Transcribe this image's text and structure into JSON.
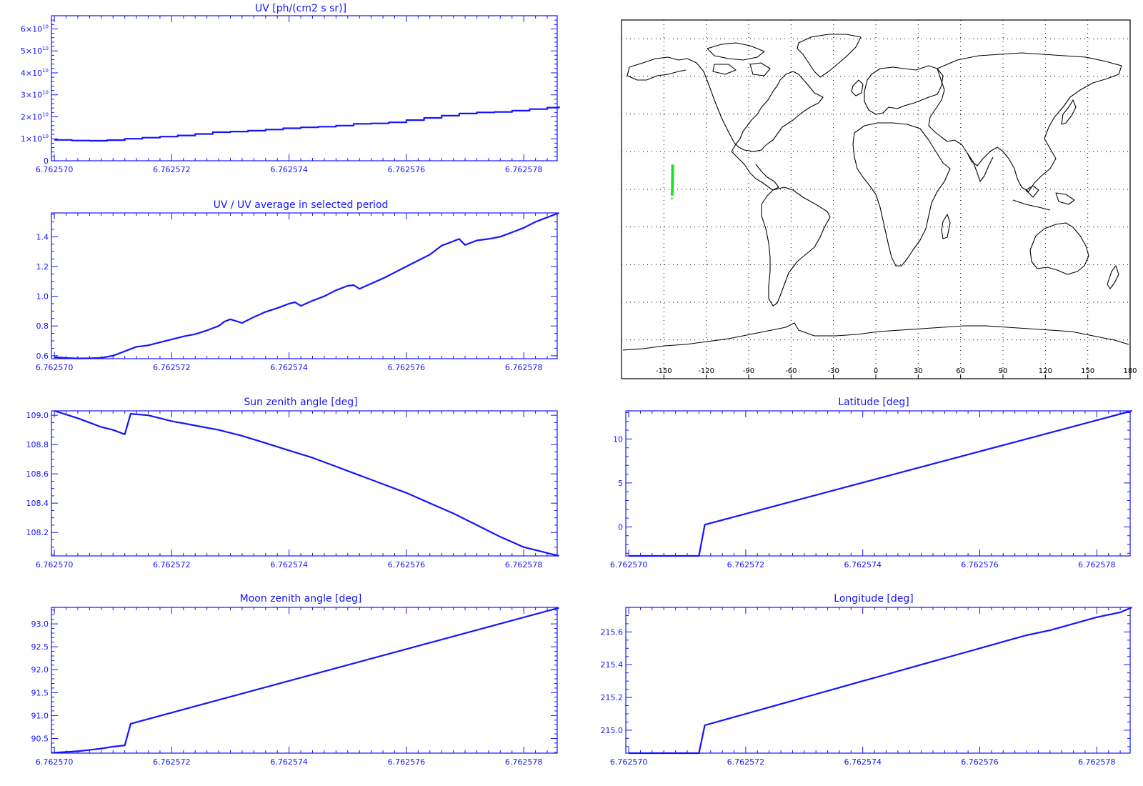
{
  "colors": {
    "axis": "#1414ff",
    "series": "#1414ff",
    "map_lines": "#000000",
    "track": "#22e022"
  },
  "chart_data": [
    {
      "id": "uv",
      "type": "line",
      "title": "UV [ph/(cm2 s sr)]",
      "xlim": [
        6.76256995,
        6.76257857
      ],
      "ylim": [
        0,
        66000000000.0
      ],
      "x_ticks": [
        6.76257,
        6.762572,
        6.762574,
        6.762576,
        6.762578
      ],
      "x_tick_labels": [
        "6.762570",
        "6.762572",
        "6.762574",
        "6.762576",
        "6.762578"
      ],
      "y_ticks": [
        0,
        10000000000.0,
        20000000000.0,
        30000000000.0,
        40000000000.0,
        50000000000.0,
        60000000000.0
      ],
      "y_tick_labels": [
        {
          "base": "0",
          "exp": ""
        },
        {
          "base": "1×10",
          "exp": "10"
        },
        {
          "base": "2×10",
          "exp": "10"
        },
        {
          "base": "3×10",
          "exp": "10"
        },
        {
          "base": "4×10",
          "exp": "10"
        },
        {
          "base": "5×10",
          "exp": "10"
        },
        {
          "base": "6×10",
          "exp": "10"
        }
      ],
      "y_minor": 5,
      "series": [
        {
          "step": true,
          "x": [
            6.76257,
            6.7625703,
            6.7625706,
            6.7625709,
            6.7625712,
            6.7625715,
            6.7625718,
            6.7625721,
            6.7625724,
            6.7625727,
            6.762573,
            6.7625733,
            6.7625736,
            6.7625739,
            6.7625742,
            6.7625745,
            6.7625748,
            6.7625751,
            6.7625754,
            6.7625757,
            6.762576,
            6.7625763,
            6.7625766,
            6.7625769,
            6.7625772,
            6.7625775,
            6.7625778,
            6.7625781,
            6.7625784,
            6.7625786
          ],
          "y": [
            9500000000.0,
            9200000000.0,
            9100000000.0,
            9400000000.0,
            10000000000.0,
            10500000000.0,
            11000000000.0,
            11500000000.0,
            12200000000.0,
            13000000000.0,
            13300000000.0,
            13700000000.0,
            14200000000.0,
            14800000000.0,
            15200000000.0,
            15500000000.0,
            16000000000.0,
            16800000000.0,
            17000000000.0,
            17500000000.0,
            18500000000.0,
            19500000000.0,
            20500000000.0,
            21500000000.0,
            22000000000.0,
            22200000000.0,
            22800000000.0,
            23500000000.0,
            24200000000.0,
            24800000000.0
          ]
        }
      ]
    },
    {
      "id": "uv_ratio",
      "type": "line",
      "title": "UV / UV average in selected period",
      "xlim": [
        6.76256995,
        6.76257857
      ],
      "ylim": [
        0.58,
        1.56
      ],
      "x_ticks": [
        6.76257,
        6.762572,
        6.762574,
        6.762576,
        6.762578
      ],
      "x_tick_labels": [
        "6.762570",
        "6.762572",
        "6.762574",
        "6.762576",
        "6.762578"
      ],
      "y_ticks": [
        0.6,
        0.8,
        1.0,
        1.2,
        1.4
      ],
      "y_tick_labels": [
        "0.6",
        "0.8",
        "1.0",
        "1.2",
        "1.4"
      ],
      "y_minor": 4,
      "series": [
        {
          "x": [
            6.76257,
            6.7625702,
            6.7625704,
            6.7625706,
            6.7625708,
            6.762571,
            6.7625712,
            6.7625714,
            6.7625716,
            6.7625718,
            6.762572,
            6.7625722,
            6.7625724,
            6.7625726,
            6.7625728,
            6.7625729,
            6.762573,
            6.7625732,
            6.7625734,
            6.7625736,
            6.7625738,
            6.762574,
            6.7625741,
            6.7625742,
            6.7625744,
            6.7625746,
            6.7625748,
            6.762575,
            6.7625751,
            6.7625752,
            6.7625754,
            6.7625756,
            6.7625758,
            6.762576,
            6.7625762,
            6.7625764,
            6.7625766,
            6.7625768,
            6.7625769,
            6.762577,
            6.7625772,
            6.7625774,
            6.7625776,
            6.7625778,
            6.762578,
            6.7625782,
            6.7625784,
            6.7625786
          ],
          "y": [
            0.59,
            0.585,
            0.582,
            0.583,
            0.586,
            0.6,
            0.63,
            0.66,
            0.67,
            0.69,
            0.71,
            0.73,
            0.745,
            0.77,
            0.8,
            0.83,
            0.845,
            0.82,
            0.86,
            0.895,
            0.92,
            0.95,
            0.96,
            0.935,
            0.97,
            1.0,
            1.04,
            1.07,
            1.075,
            1.05,
            1.085,
            1.12,
            1.16,
            1.2,
            1.24,
            1.28,
            1.34,
            1.37,
            1.385,
            1.345,
            1.375,
            1.385,
            1.4,
            1.43,
            1.46,
            1.5,
            1.53,
            1.56
          ]
        }
      ]
    },
    {
      "id": "sun_zenith",
      "type": "line",
      "title": "Sun zenith angle [deg]",
      "xlim": [
        6.76256995,
        6.76257857
      ],
      "ylim": [
        108.04,
        109.03
      ],
      "x_ticks": [
        6.76257,
        6.762572,
        6.762574,
        6.762576,
        6.762578
      ],
      "x_tick_labels": [
        "6.762570",
        "6.762572",
        "6.762574",
        "6.762576",
        "6.762578"
      ],
      "y_ticks": [
        108.2,
        108.4,
        108.6,
        108.8,
        109.0
      ],
      "y_tick_labels": [
        "108.2",
        "108.4",
        "108.6",
        "108.8",
        "109.0"
      ],
      "y_minor": 4,
      "series": [
        {
          "x": [
            6.76257,
            6.7625704,
            6.7625708,
            6.762571,
            6.7625712,
            6.7625713,
            6.7625716,
            6.762572,
            6.7625724,
            6.7625728,
            6.7625732,
            6.7625736,
            6.762574,
            6.7625744,
            6.7625748,
            6.7625752,
            6.7625756,
            6.762576,
            6.7625764,
            6.7625768,
            6.7625772,
            6.7625776,
            6.762578,
            6.7625784,
            6.7625786
          ],
          "y": [
            109.03,
            108.98,
            108.92,
            108.9,
            108.87,
            109.01,
            109.0,
            108.96,
            108.93,
            108.9,
            108.86,
            108.81,
            108.76,
            108.71,
            108.65,
            108.59,
            108.53,
            108.47,
            108.4,
            108.33,
            108.25,
            108.17,
            108.1,
            108.06,
            108.04
          ]
        }
      ]
    },
    {
      "id": "latitude",
      "type": "line",
      "title": "Latitude [deg]",
      "xlim": [
        6.76256995,
        6.76257857
      ],
      "ylim": [
        -3.3,
        13.2
      ],
      "x_ticks": [
        6.76257,
        6.762572,
        6.762574,
        6.762576,
        6.762578
      ],
      "x_tick_labels": [
        "6.762570",
        "6.762572",
        "6.762574",
        "6.762576",
        "6.762578"
      ],
      "y_ticks": [
        0,
        5,
        10
      ],
      "y_tick_labels": [
        "0",
        "5",
        "10"
      ],
      "y_minor": 5,
      "series": [
        {
          "x": [
            6.76257,
            6.762571,
            6.7625712,
            6.7625713,
            6.7625786
          ],
          "y": [
            -3.3,
            -3.3,
            -3.3,
            0.25,
            13.2
          ]
        }
      ]
    },
    {
      "id": "moon_zenith",
      "type": "line",
      "title": "Moon zenith angle [deg]",
      "xlim": [
        6.76256995,
        6.76257857
      ],
      "ylim": [
        90.18,
        93.36
      ],
      "x_ticks": [
        6.76257,
        6.762572,
        6.762574,
        6.762576,
        6.762578
      ],
      "x_tick_labels": [
        "6.762570",
        "6.762572",
        "6.762574",
        "6.762576",
        "6.762578"
      ],
      "y_ticks": [
        90.5,
        91.0,
        91.5,
        92.0,
        92.5,
        93.0
      ],
      "y_tick_labels": [
        "90.5",
        "91.0",
        "91.5",
        "92.0",
        "92.5",
        "93.0"
      ],
      "y_minor": 5,
      "series": [
        {
          "x": [
            6.76257,
            6.7625704,
            6.7625708,
            6.762571,
            6.7625712,
            6.7625713,
            6.7625786
          ],
          "y": [
            90.19,
            90.22,
            90.28,
            90.32,
            90.35,
            90.82,
            93.35
          ]
        }
      ]
    },
    {
      "id": "longitude",
      "type": "line",
      "title": "Longitude [deg]",
      "xlim": [
        6.76256995,
        6.76257857
      ],
      "ylim": [
        214.86,
        215.75
      ],
      "x_ticks": [
        6.76257,
        6.762572,
        6.762574,
        6.762576,
        6.762578
      ],
      "x_tick_labels": [
        "6.762570",
        "6.762572",
        "6.762574",
        "6.762576",
        "6.762578"
      ],
      "y_ticks": [
        215.0,
        215.2,
        215.4,
        215.6
      ],
      "y_tick_labels": [
        "215.0",
        "215.2",
        "215.4",
        "215.6"
      ],
      "y_minor": 4,
      "series": [
        {
          "x": [
            6.76257,
            6.762571,
            6.7625712,
            6.7625713,
            6.7625716,
            6.762572,
            6.7625724,
            6.7625728,
            6.7625732,
            6.7625736,
            6.762574,
            6.7625744,
            6.7625748,
            6.7625752,
            6.7625756,
            6.762576,
            6.7625764,
            6.7625768,
            6.7625772,
            6.7625776,
            6.762578,
            6.7625784,
            6.7625786
          ],
          "y": [
            214.86,
            214.86,
            214.86,
            215.03,
            215.06,
            215.1,
            215.14,
            215.18,
            215.22,
            215.26,
            215.3,
            215.34,
            215.38,
            215.42,
            215.46,
            215.5,
            215.54,
            215.58,
            215.61,
            215.65,
            215.69,
            215.72,
            215.75
          ]
        }
      ]
    },
    {
      "id": "world_map",
      "type": "map",
      "projection": "equirectangular",
      "lon_range": [
        -180,
        180
      ],
      "lat_range": [
        -90,
        90
      ],
      "x_tick_labels": [
        "-150",
        "-120",
        "-90",
        "-60",
        "-30",
        "0",
        "30",
        "60",
        "90",
        "120",
        "150",
        "180"
      ],
      "x_ticks": [
        -150,
        -120,
        -90,
        -60,
        -30,
        0,
        30,
        60,
        90,
        120,
        150,
        180
      ],
      "grid": true,
      "grid_lon_step": 30,
      "grid_lat_step": 20,
      "track": {
        "lon": [
          -144.2,
          -144.0,
          -143.9,
          -143.8,
          -143.8
        ],
        "lat": [
          -3.3,
          0.3,
          5,
          10,
          13.2
        ]
      },
      "track_marker": {
        "lon": -144.2,
        "lat": -3.3,
        "symbol": "*"
      }
    }
  ]
}
